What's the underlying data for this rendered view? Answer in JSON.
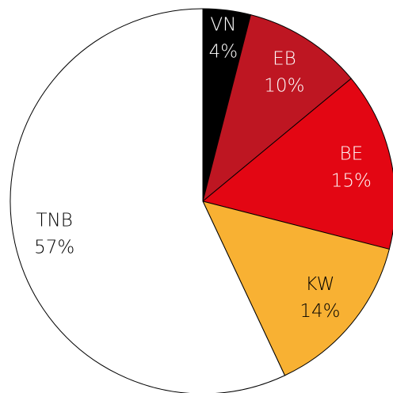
{
  "chart_data": {
    "type": "pie",
    "categories": [
      "VN",
      "EB",
      "BE",
      "KW",
      "TNB"
    ],
    "values": [
      4,
      10,
      15,
      14,
      57
    ],
    "value_labels": [
      "4%",
      "10%",
      "15%",
      "14%",
      "57%"
    ],
    "colors": [
      "#000000",
      "#be1622",
      "#e30613",
      "#f8b133",
      "#ffffff"
    ]
  }
}
